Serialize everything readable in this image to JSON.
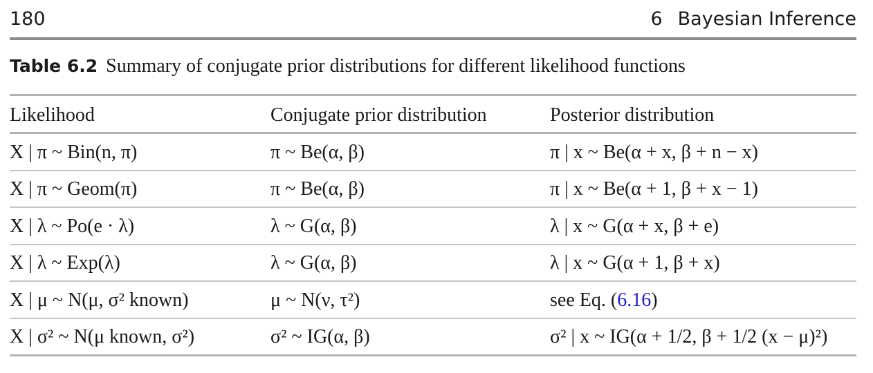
{
  "running_head": {
    "page_number": "180",
    "chapter_number": "6",
    "chapter_title": "Bayesian Inference"
  },
  "caption": {
    "label": "Table 6.2",
    "text": "Summary of conjugate prior distributions for different likelihood functions"
  },
  "table": {
    "headers": [
      "Likelihood",
      "Conjugate prior distribution",
      "Posterior distribution"
    ],
    "rows": [
      {
        "likelihood": "X | π ~ Bin(n, π)",
        "prior": "π ~ Be(α, β)",
        "posterior": "π | x ~ Be(α + x, β + n − x)"
      },
      {
        "likelihood": "X | π ~ Geom(π)",
        "prior": "π ~ Be(α, β)",
        "posterior": "π | x ~ Be(α + 1, β + x − 1)"
      },
      {
        "likelihood": "X | λ ~ Po(e · λ)",
        "prior": "λ ~ G(α, β)",
        "posterior": "λ | x ~ G(α + x, β + e)"
      },
      {
        "likelihood": "X | λ ~ Exp(λ)",
        "prior": "λ ~ G(α, β)",
        "posterior": "λ | x ~ G(α + 1, β + x)"
      },
      {
        "likelihood": "X | μ ~ N(μ, σ² known)",
        "prior": "μ ~ N(ν, τ²)",
        "posterior_prefix": "see Eq. (",
        "posterior_ref": "6.16",
        "posterior_suffix": ")"
      },
      {
        "likelihood": "X | σ² ~ N(μ known, σ²)",
        "prior": "σ² ~ IG(α, β)",
        "posterior": "σ² | x ~ IG(α + 1/2, β + 1/2 (x − μ)²)"
      }
    ]
  },
  "colors": {
    "text": "#1a1a1a",
    "rule": "#b3b3b3",
    "link": "#2020c8"
  }
}
